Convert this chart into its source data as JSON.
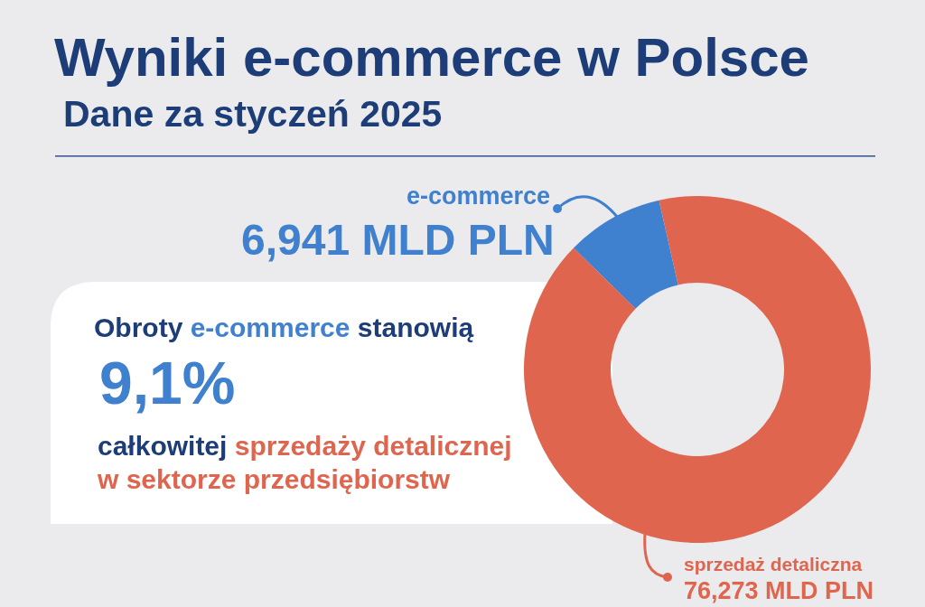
{
  "chart_data": {
    "type": "donut",
    "title": "Wyniki e-commerce w Polsce",
    "subtitle": "Dane za styczeń 2025",
    "categories": [
      "e-commerce",
      "sprzedaż detaliczna"
    ],
    "values": [
      9.1,
      90.9
    ],
    "colors": [
      "#3f80cf",
      "#e0654f"
    ],
    "annotations": [
      "6,941 MLD PLN",
      "Obroty",
      "e-commerce",
      "stanowią",
      "9,1%",
      "całkowitej",
      "sprzedaży detalicznej",
      "w sektorze przedsiębiorstw",
      "76,273 MLD PLN"
    ]
  }
}
